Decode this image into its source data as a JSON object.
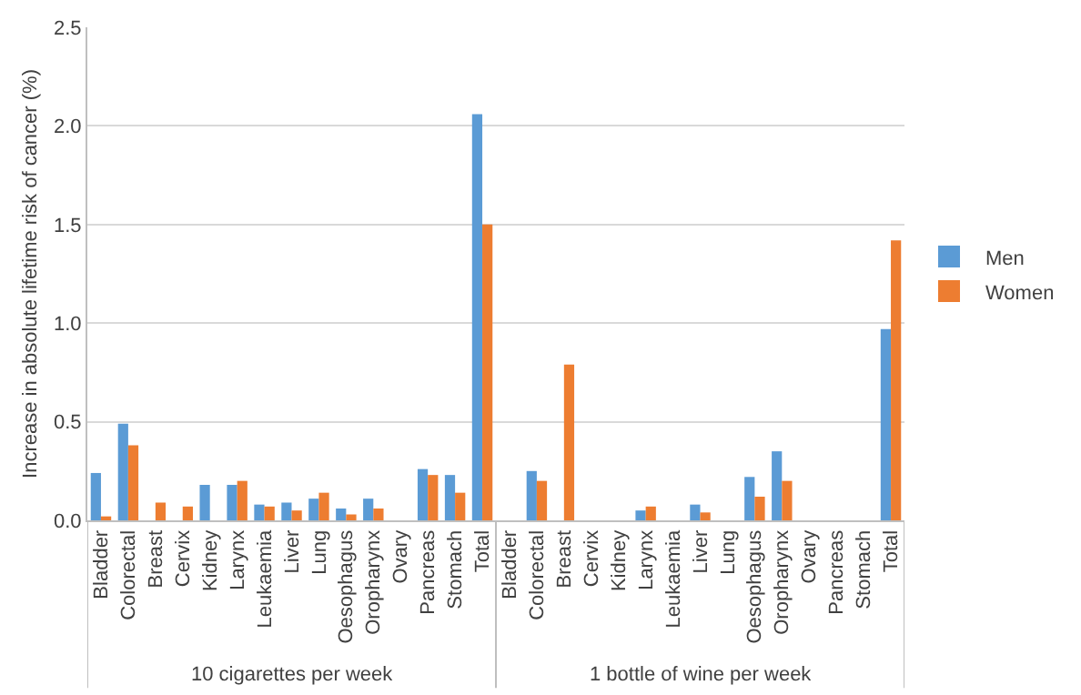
{
  "chart_data": {
    "type": "bar",
    "ylabel": "Increase in absolute lifetime risk of cancer (%)",
    "categories": [
      "Bladder",
      "Colorectal",
      "Breast",
      "Cervix",
      "Kidney",
      "Larynx",
      "Leukaemia",
      "Liver",
      "Lung",
      "Oesophagus",
      "Oropharynx",
      "Ovary",
      "Pancreas",
      "Stomach",
      "Total",
      "Bladder",
      "Colorectal",
      "Breast",
      "Cervix",
      "Kidney",
      "Larynx",
      "Leukaemia",
      "Liver",
      "Lung",
      "Oesophagus",
      "Oropharynx",
      "Ovary",
      "Pancreas",
      "Stomach",
      "Total"
    ],
    "series": [
      {
        "name": "Men",
        "color": "#5b9bd5",
        "values": [
          0.24,
          0.49,
          null,
          null,
          0.18,
          0.18,
          0.08,
          0.09,
          0.11,
          0.06,
          0.11,
          null,
          0.26,
          0.23,
          2.06,
          null,
          0.25,
          null,
          null,
          null,
          0.05,
          null,
          0.08,
          null,
          0.22,
          0.35,
          null,
          null,
          null,
          0.97
        ]
      },
      {
        "name": "Women",
        "color": "#ed7d31",
        "values": [
          0.02,
          0.38,
          0.09,
          0.07,
          null,
          0.2,
          0.07,
          0.05,
          0.14,
          0.03,
          0.06,
          null,
          0.23,
          0.14,
          1.5,
          null,
          0.2,
          0.79,
          null,
          null,
          0.07,
          null,
          0.04,
          null,
          0.12,
          0.2,
          null,
          null,
          null,
          1.42
        ]
      }
    ],
    "ylim": [
      0,
      2.5
    ],
    "yticks": [
      {
        "value": 0,
        "label": "0.0"
      },
      {
        "value": 0.5,
        "label": "0.5"
      },
      {
        "value": 1,
        "label": "1.0"
      },
      {
        "value": 1.5,
        "label": "1.5"
      },
      {
        "value": 2,
        "label": "2.0"
      },
      {
        "value": 2.5,
        "label": "2.5"
      }
    ],
    "grid": "y",
    "legend": "right",
    "annotations": [
      "10 cigarettes per week",
      "1 bottle of wine per week"
    ]
  }
}
